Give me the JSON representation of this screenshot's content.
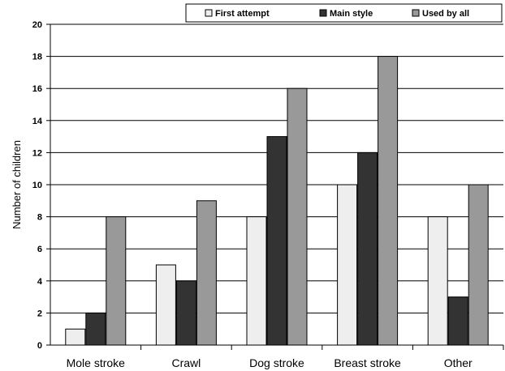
{
  "chart_data": {
    "type": "bar",
    "title": "",
    "xlabel": "",
    "ylabel": "Number of children",
    "ylim": [
      0,
      20
    ],
    "yticks": [
      0,
      2,
      4,
      6,
      8,
      10,
      12,
      14,
      16,
      18,
      20
    ],
    "grid": "horizontal",
    "legend_position": "top-right",
    "categories": [
      "Mole stroke",
      "Crawl",
      "Dog stroke",
      "Breast stroke",
      "Other"
    ],
    "series": [
      {
        "name": "First attempt",
        "color": "#eeeeee",
        "values": [
          1,
          5,
          8,
          10,
          8
        ]
      },
      {
        "name": "Main style",
        "color": "#333333",
        "values": [
          2,
          4,
          13,
          12,
          3
        ]
      },
      {
        "name": "Used by all",
        "color": "#999999",
        "values": [
          8,
          9,
          16,
          18,
          10
        ]
      }
    ]
  }
}
